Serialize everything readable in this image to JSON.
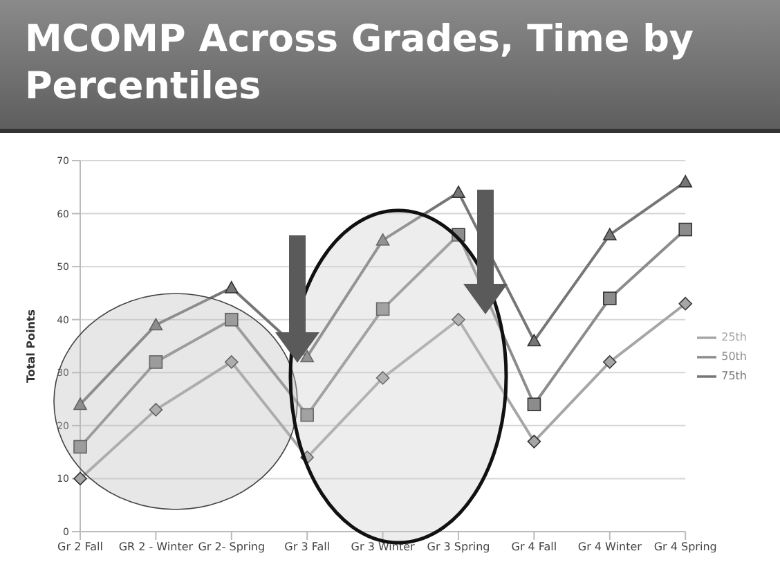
{
  "chart_data": {
    "type": "line",
    "title": "MCOMP Across Grades, Time by Percentiles",
    "ylabel": "Total Points",
    "categories": [
      "Gr 2 Fall",
      "GR 2 - Winter",
      "Gr 2- Spring",
      "Gr 3 Fall",
      "Gr 3 Winter",
      "Gr 3 Spring",
      "Gr 4 Fall",
      "Gr 4 Winter",
      "Gr 4 Spring"
    ],
    "series": [
      {
        "name": "25th",
        "color": "#a6a6a6",
        "marker": "diamond",
        "values": [
          10,
          23,
          32,
          14,
          29,
          40,
          17,
          32,
          43
        ]
      },
      {
        "name": "50th",
        "color": "#8c8c8c",
        "marker": "square",
        "values": [
          16,
          32,
          40,
          22,
          42,
          56,
          24,
          44,
          57
        ]
      },
      {
        "name": "75th",
        "color": "#767676",
        "marker": "triangle",
        "values": [
          24,
          39,
          46,
          33,
          55,
          64,
          36,
          56,
          66
        ]
      }
    ],
    "ylim": [
      0,
      70
    ],
    "yticks": [
      0,
      10,
      20,
      30,
      40,
      50,
      60,
      70
    ],
    "grid": "y",
    "legend": "right"
  }
}
